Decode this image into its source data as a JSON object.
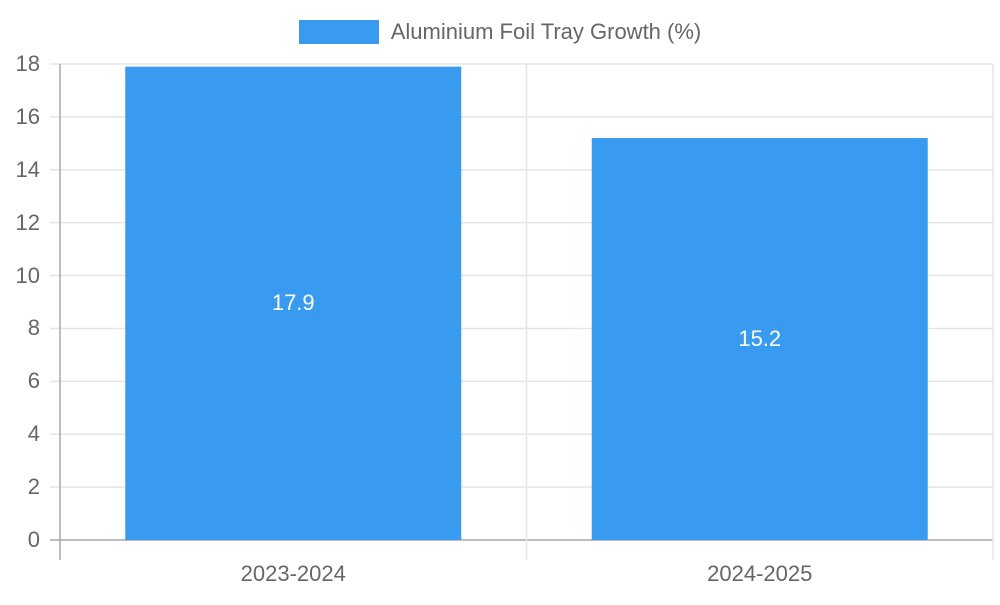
{
  "chart_data": {
    "type": "bar",
    "title": "",
    "categories": [
      "2023-2024",
      "2024-2025"
    ],
    "series": [
      {
        "name": "Aluminium Foil Tray Growth (%)",
        "values": [
          17.9,
          15.2
        ],
        "color": "#389BEF"
      }
    ],
    "xlabel": "",
    "ylabel": "",
    "ylim": [
      0,
      18
    ],
    "yticks": [
      0,
      2,
      4,
      6,
      8,
      10,
      12,
      14,
      16,
      18
    ],
    "grid": true,
    "legend_position": "top",
    "data_labels": [
      "17.9",
      "15.2"
    ]
  },
  "legend": {
    "label": "Aluminium Foil Tray Growth (%)"
  },
  "colors": {
    "bar": "#389BEF",
    "grid": "#E5E5E5",
    "axis": "#A8A8A8",
    "text": "#666666"
  }
}
